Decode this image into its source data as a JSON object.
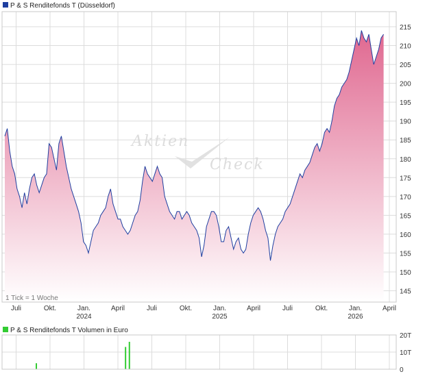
{
  "colors": {
    "price_line": "#1f3fa0",
    "fill_top": "#e06890",
    "fill_bottom": "#ffffff",
    "volume_bar": "#33cc33",
    "legend_price": "#1f3fa0",
    "legend_volume": "#33cc33"
  },
  "watermark": {
    "word1": "Aktien",
    "word2": "Check",
    "icon": "checkmark-logo-icon"
  },
  "chart_data": [
    {
      "type": "area",
      "title": "P & S Renditefonds T (Düsseldorf)",
      "note": "1 Tick = 1 Woche",
      "y_ticks": [
        145,
        150,
        155,
        160,
        165,
        170,
        175,
        180,
        185,
        190,
        195,
        200,
        205,
        210,
        215
      ],
      "ylim": [
        142,
        219
      ],
      "x_ticks": [
        {
          "t": 0.03,
          "label": "Juli"
        },
        {
          "t": 0.12,
          "label": "Okt."
        },
        {
          "t": 0.21,
          "label": "Jan.",
          "year": "2024"
        },
        {
          "t": 0.3,
          "label": "April"
        },
        {
          "t": 0.39,
          "label": "Juli"
        },
        {
          "t": 0.48,
          "label": "Okt."
        },
        {
          "t": 0.57,
          "label": "Jan.",
          "year": "2025"
        },
        {
          "t": 0.66,
          "label": "April"
        },
        {
          "t": 0.75,
          "label": "Juli"
        },
        {
          "t": 0.84,
          "label": "Okt."
        },
        {
          "t": 0.93,
          "label": "Jan.",
          "year": "2026"
        },
        {
          "t": 1.02,
          "label": "April"
        }
      ],
      "series": [
        {
          "values": [
            186,
            188,
            182,
            178,
            176,
            172,
            170,
            167,
            171,
            168,
            172,
            175,
            176,
            173,
            171,
            173,
            175,
            176,
            184,
            183,
            180,
            177,
            184,
            186,
            182,
            178,
            175,
            172,
            170,
            168,
            166,
            163,
            158,
            157,
            155,
            158,
            161,
            162,
            163,
            165,
            166,
            167,
            170,
            172,
            168,
            166,
            164,
            164,
            162,
            161,
            160,
            161,
            163,
            165,
            166,
            169,
            174,
            178,
            176,
            175,
            174,
            176,
            178,
            176,
            175,
            170,
            168,
            166,
            165,
            164,
            166,
            166,
            164,
            165,
            166,
            165,
            163,
            162,
            161,
            159,
            154,
            157,
            162,
            164,
            166,
            166,
            165,
            162,
            158,
            158,
            161,
            162,
            159,
            156,
            158,
            159,
            156,
            155,
            156,
            160,
            163,
            165,
            166,
            167,
            166,
            164,
            161,
            159,
            153,
            157,
            160,
            162,
            163,
            164,
            166,
            167,
            168,
            170,
            172,
            174,
            176,
            175,
            177,
            178,
            179,
            181,
            183,
            184,
            182,
            184,
            187,
            188,
            187,
            190,
            194,
            196,
            197,
            199,
            200,
            201,
            203,
            206,
            209,
            212,
            210,
            214,
            212,
            211,
            213,
            209,
            205,
            207,
            209,
            212,
            213
          ]
        }
      ]
    },
    {
      "type": "bar",
      "title": "P & S Renditefonds T Volumen in Euro",
      "y_ticks": [
        {
          "v": 0,
          "label": "0"
        },
        {
          "v": 10,
          "label": "10T"
        },
        {
          "v": 20,
          "label": "20T"
        }
      ],
      "ylim": [
        0,
        20
      ],
      "bars": [
        {
          "t": 0.082,
          "value": 3.5
        },
        {
          "t": 0.314,
          "value": 13
        },
        {
          "t": 0.324,
          "value": 16
        }
      ]
    }
  ]
}
